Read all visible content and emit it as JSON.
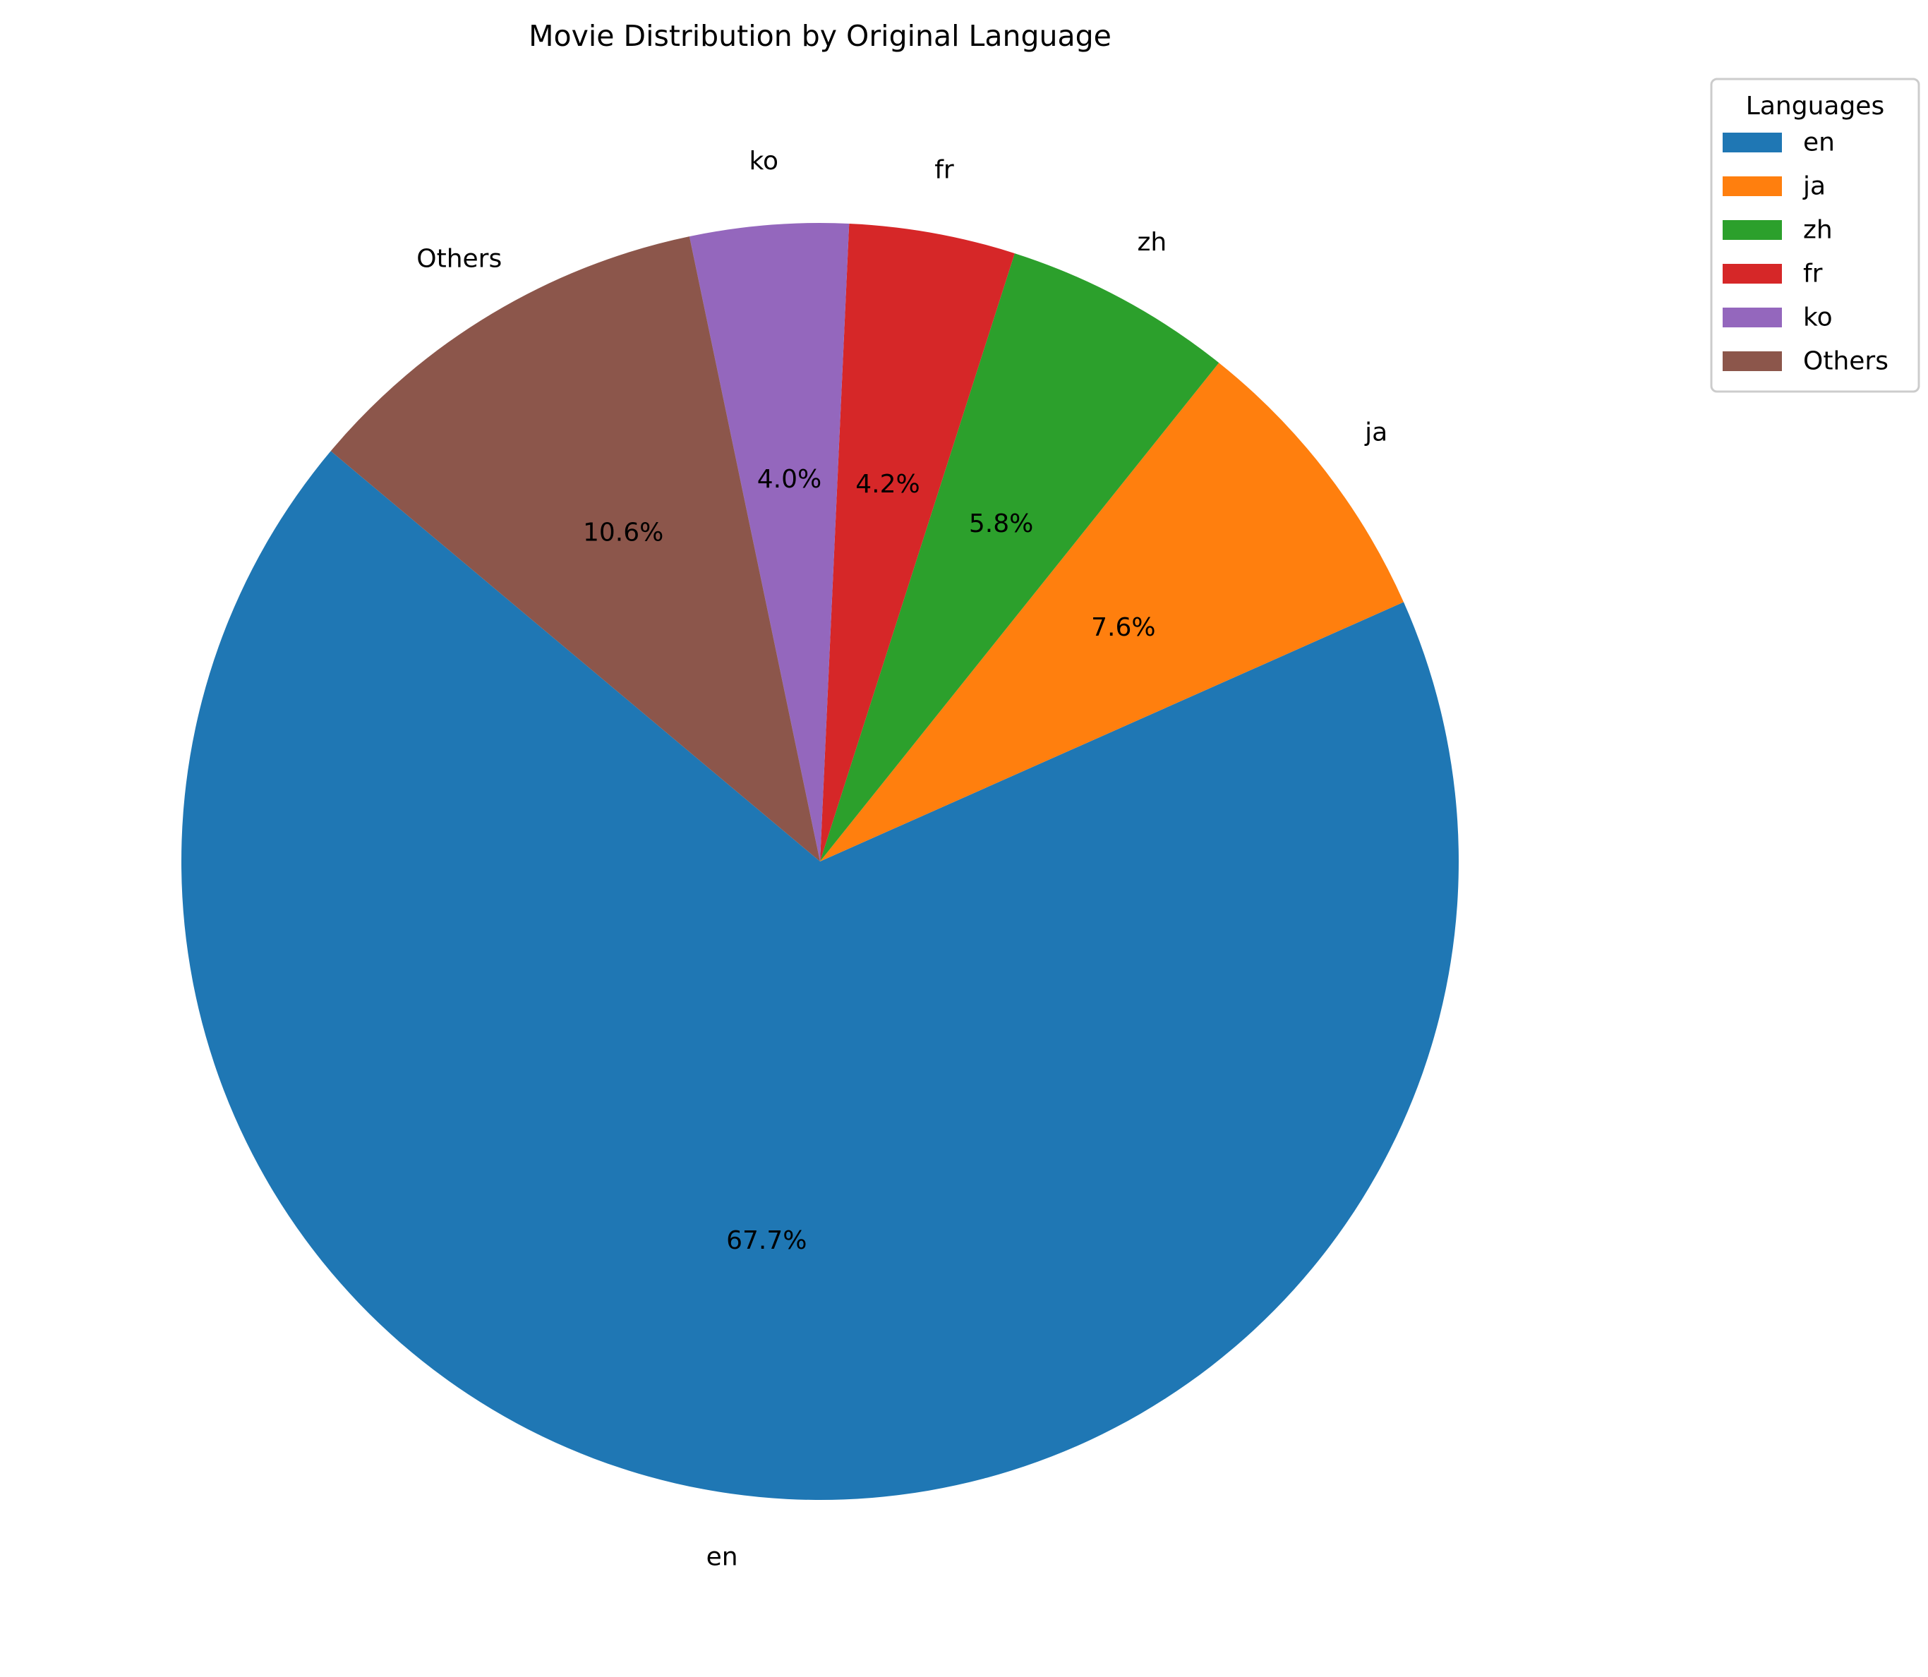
{
  "chart_data": {
    "type": "pie",
    "title": "Movie Distribution by Original Language",
    "categories": [
      "en",
      "ja",
      "zh",
      "fr",
      "ko",
      "Others"
    ],
    "values": [
      67.7,
      7.6,
      5.8,
      4.2,
      4.0,
      10.6
    ],
    "value_labels": [
      "67.7%",
      "7.6%",
      "5.8%",
      "4.2%",
      "4.0%",
      "10.6%"
    ],
    "colors": [
      "#1f77b4",
      "#ff7f0e",
      "#2ca02c",
      "#d62728",
      "#9467bd",
      "#8c564b"
    ],
    "start_angle_deg": 140,
    "direction": "counterclockwise",
    "legend": {
      "title": "Languages",
      "position": "top-right",
      "entries": [
        "en",
        "ja",
        "zh",
        "fr",
        "ko",
        "Others"
      ]
    }
  }
}
